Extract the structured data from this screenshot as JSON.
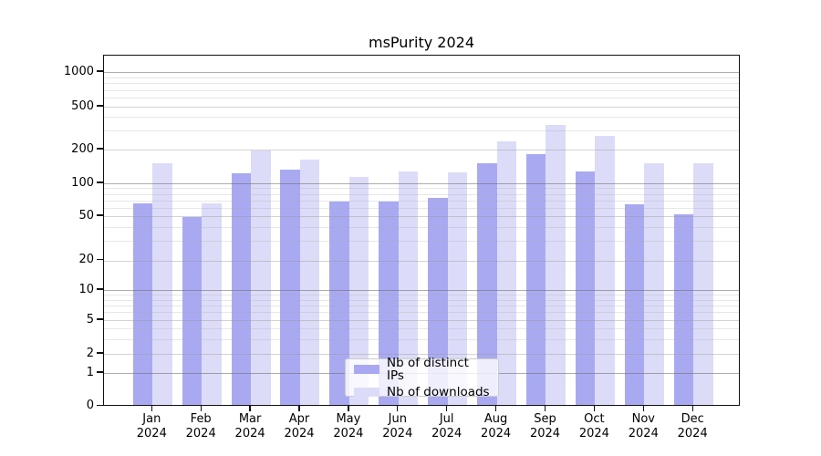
{
  "title": "msPurity 2024",
  "chart_data": {
    "type": "bar",
    "title": "msPurity 2024",
    "categories": [
      "Jan 2024",
      "Feb 2024",
      "Mar 2024",
      "Apr 2024",
      "May 2024",
      "Jun 2024",
      "Jul 2024",
      "Aug 2024",
      "Sep 2024",
      "Oct 2024",
      "Nov 2024",
      "Dec 2024"
    ],
    "series": [
      {
        "name": "Nb of distinct IPs",
        "color": "#a9a9f2",
        "values": [
          65,
          49,
          122,
          133,
          68,
          68,
          73,
          150,
          181,
          127,
          64,
          52
        ]
      },
      {
        "name": "Nb of downloads",
        "color": "#dcdcf8",
        "values": [
          150,
          66,
          197,
          164,
          115,
          128,
          125,
          238,
          340,
          266,
          152,
          150
        ]
      }
    ],
    "xlabel": "",
    "ylabel": "",
    "yscale": "symlog",
    "yticks": [
      0,
      1,
      2,
      5,
      10,
      20,
      50,
      100,
      200,
      500,
      1000
    ],
    "ylim": [
      0,
      1480
    ],
    "grid": true,
    "legend_position": "lower center",
    "background": "#ffffff",
    "text_color": "#000000"
  }
}
